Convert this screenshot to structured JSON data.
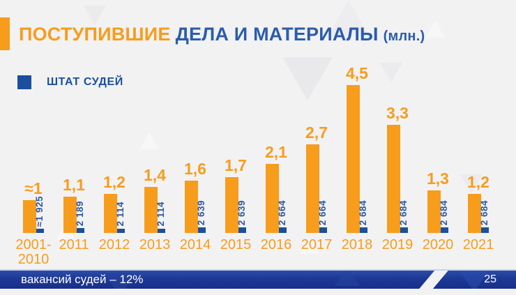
{
  "header": {
    "title_orange": "ПОСТУПИВШИЕ",
    "title_blue": "ДЕЛА И МАТЕРИАЛЫ",
    "title_unit": "(млн.)"
  },
  "legend": {
    "label": "ШТАТ СУДЕЙ"
  },
  "footer": {
    "left_text": "вакансий судей – 12%",
    "page_number": "25"
  },
  "colors": {
    "orange": "#f89c1c",
    "bar_blue": "#1b4f9e",
    "title_blue": "#2b5cad",
    "footer_navy": "#1e3a96",
    "background": "#f2f2f3"
  },
  "chart_data": {
    "type": "bar",
    "title": "ПОСТУПИВШИЕ ДЕЛА И МАТЕРИАЛЫ (млн.)",
    "legend_entries": [
      "ШТАТ СУДЕЙ"
    ],
    "legend_position": "top-left",
    "grid": false,
    "axes_hidden": true,
    "categories": [
      "2001-2010",
      "2011",
      "2012",
      "2013",
      "2014",
      "2015",
      "2016",
      "2017",
      "2018",
      "2019",
      "2020",
      "2021"
    ],
    "series": [
      {
        "name": "Поступившие дела и материалы (млн.)",
        "color": "#f89c1c",
        "values": [
          1.0,
          1.1,
          1.2,
          1.4,
          1.6,
          1.7,
          2.1,
          2.7,
          4.5,
          3.3,
          1.3,
          1.2
        ],
        "labels": [
          "≈1",
          "1,1",
          "1,2",
          "1,4",
          "1,6",
          "1,7",
          "2,1",
          "2,7",
          "4,5",
          "3,3",
          "1,3",
          "1,2"
        ]
      },
      {
        "name": "ШТАТ СУДЕЙ",
        "color": "#1b4f9e",
        "values": [
          1925,
          2189,
          2114,
          2114,
          2639,
          2639,
          2664,
          2664,
          2684,
          2684,
          2684,
          2684
        ],
        "labels": [
          "≈1 925",
          "2 189",
          "2 114",
          "2 114",
          "2 639",
          "2 639",
          "2 664",
          "2 664",
          "2 684",
          "2 684",
          "2 684",
          "2 684"
        ]
      }
    ]
  }
}
